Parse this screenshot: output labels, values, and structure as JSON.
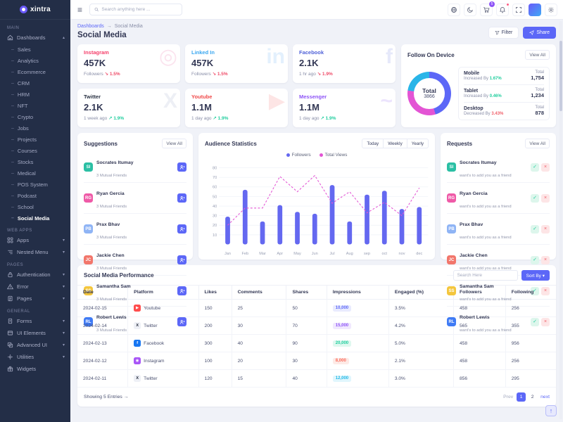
{
  "sidebar": {
    "logo": "xintra",
    "sections": [
      {
        "label": "MAIN",
        "items": [
          {
            "label": "Dashboards",
            "icon": "home-icon",
            "expanded": true,
            "caret": true,
            "children": [
              "Sales",
              "Analytics",
              "Ecommerce",
              "CRM",
              "HRM",
              "NFT",
              "Crypto",
              "Jobs",
              "Projects",
              "Courses",
              "Stocks",
              "Medical",
              "POS System",
              "Podcast",
              "School",
              "Social Media"
            ],
            "active_child": "Social Media"
          }
        ]
      },
      {
        "label": "WEB APPS",
        "items": [
          {
            "label": "Apps",
            "icon": "apps-icon",
            "caret": true
          },
          {
            "label": "Nested Menu",
            "icon": "nested-menu-icon",
            "caret": true
          }
        ]
      },
      {
        "label": "PAGES",
        "items": [
          {
            "label": "Authentication",
            "icon": "lock-icon",
            "caret": true
          },
          {
            "label": "Error",
            "icon": "warning-icon",
            "caret": true
          },
          {
            "label": "Pages",
            "icon": "pages-icon",
            "caret": true
          }
        ]
      },
      {
        "label": "GENERAL",
        "items": [
          {
            "label": "Forms",
            "icon": "forms-icon",
            "caret": true
          },
          {
            "label": "UI Elements",
            "icon": "ui-elements-icon",
            "caret": true
          },
          {
            "label": "Advanced UI",
            "icon": "advanced-ui-icon",
            "caret": true
          },
          {
            "label": "Utilities",
            "icon": "utilities-icon",
            "caret": true
          },
          {
            "label": "Widgets",
            "icon": "widgets-icon",
            "caret": false
          }
        ]
      }
    ]
  },
  "header": {
    "search_placeholder": "Search anything here ...",
    "cart_badge": "5",
    "icons": [
      "translate-icon",
      "dark-mode-icon",
      "cart-icon",
      "notifications-icon",
      "fullscreen-icon",
      "profile-avatar",
      "settings-icon"
    ]
  },
  "page": {
    "breadcrumb": {
      "parent": "Dashboards",
      "separator": "→",
      "current": "Social Media"
    },
    "title": "Social Media",
    "filter_label": "Filter",
    "share_label": "Share"
  },
  "cards": [
    {
      "name": "Instagram",
      "color": "#f5416c",
      "value": "457K",
      "subtext": "Followers",
      "trend_arrow": "↘",
      "trend_value": "1.5%",
      "trend_color": "#ef4b68",
      "watermark": "◎",
      "wm_color": "#fbe3ee"
    },
    {
      "name": "Linked In",
      "color": "#3aa7f0",
      "value": "457K",
      "subtext": "Followers",
      "trend_arrow": "↘",
      "trend_value": "1.5%",
      "trend_color": "#ef4b68",
      "watermark": "in",
      "wm_color": "#e3f0fd"
    },
    {
      "name": "Facebook",
      "color": "#4f61d8",
      "value": "2.1K",
      "subtext": "1 hr ago",
      "trend_arrow": "↘",
      "trend_value": "1.9%",
      "trend_color": "#ef4b68",
      "watermark": "f",
      "wm_color": "#e6e9fa"
    },
    {
      "name": "Twitter",
      "color": "#2b3344",
      "value": "2.1K",
      "subtext": "1 week ago",
      "trend_arrow": "↗",
      "trend_value": "1.9%",
      "trend_color": "#21ce9e",
      "watermark": "X",
      "wm_color": "#edeff5"
    },
    {
      "name": "Youtube",
      "color": "#f04a4a",
      "value": "1.1M",
      "subtext": "1 day ago",
      "trend_arrow": "↗",
      "trend_value": "1.9%",
      "trend_color": "#21ce9e",
      "watermark": "▶",
      "wm_color": "#fde5e5"
    },
    {
      "name": "Messenger",
      "color": "#8e54f7",
      "value": "1.1M",
      "subtext": "1 day ago",
      "trend_arrow": "↗",
      "trend_value": "1.9%",
      "trend_color": "#21ce9e",
      "watermark": "~",
      "wm_color": "#ece4fd"
    }
  ],
  "follow_on_device": {
    "title": "Follow On Device",
    "view_all": "View All",
    "center_label": "Total",
    "center_value": "3866",
    "devices": [
      {
        "name": "Mobile",
        "change_label": "Increased By",
        "change_value": "1.67%",
        "change_color": "#21ce9e",
        "total_label": "Total",
        "total": "1,754",
        "color": "#5c67f7"
      },
      {
        "name": "Tablet",
        "change_label": "Increased By",
        "change_value": "0.46%",
        "change_color": "#21ce9e",
        "total_label": "Total",
        "total": "1,234",
        "color": "#e354d4"
      },
      {
        "name": "Desktop",
        "change_label": "Decreased By",
        "change_value": "3.43%",
        "change_color": "#f0616b",
        "total_label": "Total",
        "total": "878",
        "color": "#29b5e8"
      }
    ]
  },
  "suggestions": {
    "title": "Suggestions",
    "view_all": "View All",
    "people": [
      {
        "name": "Socrates Itumay",
        "sub": "3 Mutual Friends",
        "avatar_color": "#2bbfa4",
        "initials": "SI"
      },
      {
        "name": "Ryan Gercia",
        "sub": "3 Mutual Friends",
        "avatar_color": "#ef5aa7",
        "initials": "RG"
      },
      {
        "name": "Prax Bhav",
        "sub": "3 Mutual Friends",
        "avatar_color": "#8fb4f5",
        "initials": "PB"
      },
      {
        "name": "Jackie Chen",
        "sub": "3 Mutual Friends",
        "avatar_color": "#f2766b",
        "initials": "JC"
      },
      {
        "name": "Samantha Sam",
        "sub": "3 Mutual Friends",
        "avatar_color": "#f4c63d",
        "initials": "SS"
      },
      {
        "name": "Robert Lewis",
        "sub": "3 Mutual Friends",
        "avatar_color": "#3f7bf5",
        "initials": "RL"
      }
    ]
  },
  "requests": {
    "title": "Requests",
    "view_all": "View All",
    "accept_glyph": "✓",
    "decline_glyph": "×",
    "people": [
      {
        "name": "Socrates Itumay",
        "sub": "want's to add you as a friend",
        "avatar_color": "#2bbfa4",
        "initials": "SI"
      },
      {
        "name": "Ryan Gercia",
        "sub": "want's to add you as a friend",
        "avatar_color": "#ef5aa7",
        "initials": "RG"
      },
      {
        "name": "Prax Bhav",
        "sub": "want's to add you as a friend",
        "avatar_color": "#8fb4f5",
        "initials": "PB"
      },
      {
        "name": "Jackie Chen",
        "sub": "want's to add you as a friend",
        "avatar_color": "#f2766b",
        "initials": "JC"
      },
      {
        "name": "Samantha Sam",
        "sub": "want's to add you as a friend",
        "avatar_color": "#f4c63d",
        "initials": "SS"
      },
      {
        "name": "Robert Lewis",
        "sub": "want's to add you as a friend",
        "avatar_color": "#3f7bf5",
        "initials": "RL"
      }
    ]
  },
  "audience": {
    "title": "Audience Statistics",
    "ranges": [
      "Today",
      "Weekly",
      "Yearly"
    ],
    "chart_data": {
      "type": "bar",
      "categories": [
        "Jan",
        "Feb",
        "Mar",
        "Apr",
        "May",
        "Jun",
        "Jul",
        "Aug",
        "sep",
        "oct",
        "nov",
        "dec"
      ],
      "series": [
        {
          "name": "Followers",
          "type": "bar",
          "color": "#6468f0",
          "values": [
            29,
            57,
            24,
            41,
            34,
            32,
            62,
            24,
            52,
            56,
            37,
            39
          ]
        },
        {
          "name": "Total Views",
          "type": "line",
          "color": "#e354d4",
          "style": "dashed",
          "values": [
            20,
            38,
            38,
            71,
            55,
            72,
            43,
            55,
            33,
            44,
            30,
            59
          ]
        }
      ],
      "ylim": [
        0,
        85
      ],
      "yticks": [
        10,
        20,
        30,
        40,
        50,
        60,
        70,
        80
      ],
      "grid": true,
      "legend_position": "top"
    }
  },
  "table": {
    "title": "Social Media Performance",
    "search_placeholder": "Search Here",
    "sort_label": "Sort By",
    "sort_caret": "▾",
    "columns": [
      "Date",
      "Platform",
      "Likes",
      "Comments",
      "Shares",
      "Impressions",
      "Engaged (%)",
      "Followers",
      "Following"
    ],
    "rows": [
      {
        "date": "2024-02-15",
        "platform": "Youtube",
        "icon_glyph": "▶",
        "icon_bg": "#ff4d4d",
        "icon_fg": "#ffffff",
        "likes": "150",
        "comments": "25",
        "shares": "50",
        "impressions": "10,000",
        "imp_color": "#5c67f7",
        "imp_bg": "#e9ebfe",
        "engaged": "3.5%",
        "followers": "458",
        "following": "256"
      },
      {
        "date": "2024-02-14",
        "platform": "Twitter",
        "icon_glyph": "X",
        "icon_bg": "#eef0f6",
        "icon_fg": "#1b2233",
        "likes": "200",
        "comments": "30",
        "shares": "70",
        "impressions": "15,000",
        "imp_color": "#8e54f7",
        "imp_bg": "#f0e8fe",
        "engaged": "4.2%",
        "followers": "565",
        "following": "355"
      },
      {
        "date": "2024-02-13",
        "platform": "Facebook",
        "icon_glyph": "f",
        "icon_bg": "#1877f2",
        "icon_fg": "#ffffff",
        "likes": "300",
        "comments": "40",
        "shares": "90",
        "impressions": "20,000",
        "imp_color": "#21ce9e",
        "imp_bg": "#dff8ef",
        "engaged": "5.0%",
        "followers": "458",
        "following": "956"
      },
      {
        "date": "2024-02-12",
        "platform": "Instagram",
        "icon_glyph": "◉",
        "icon_bg": "#a855f7",
        "icon_fg": "#ffffff",
        "likes": "100",
        "comments": "20",
        "shares": "30",
        "impressions": "8,000",
        "imp_color": "#fb6b5b",
        "imp_bg": "#fdeae6",
        "engaged": "2.1%",
        "followers": "458",
        "following": "256"
      },
      {
        "date": "2024-02-11",
        "platform": "Twitter",
        "icon_glyph": "X",
        "icon_bg": "#eef0f6",
        "icon_fg": "#1b2233",
        "likes": "120",
        "comments": "15",
        "shares": "40",
        "impressions": "12,000",
        "imp_color": "#22b8e6",
        "imp_bg": "#e0f6fd",
        "engaged": "3.0%",
        "followers": "856",
        "following": "295"
      }
    ],
    "footer": {
      "showing": "Showing 5 Entries",
      "arrow": "→",
      "prev_label": "Prev",
      "pages": [
        "1",
        "2"
      ],
      "active_page": "1",
      "next_label": "next"
    }
  },
  "misc": {
    "scroll_top_glyph": "↑"
  }
}
